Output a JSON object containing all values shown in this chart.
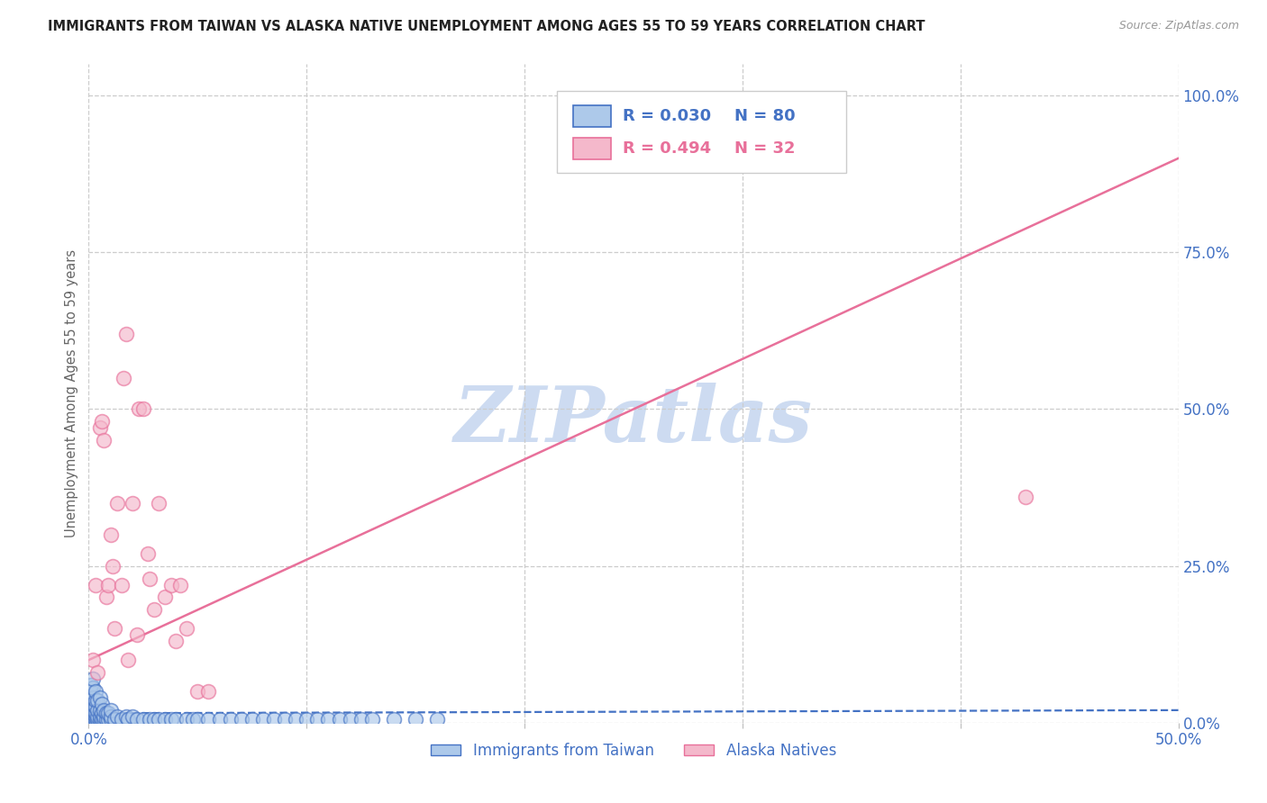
{
  "title": "IMMIGRANTS FROM TAIWAN VS ALASKA NATIVE UNEMPLOYMENT AMONG AGES 55 TO 59 YEARS CORRELATION CHART",
  "source": "Source: ZipAtlas.com",
  "ylabel": "Unemployment Among Ages 55 to 59 years",
  "xlim": [
    0.0,
    0.5
  ],
  "ylim": [
    0.0,
    1.05
  ],
  "series1_label": "Immigrants from Taiwan",
  "series1_facecolor": "#adc9ea",
  "series1_edgecolor": "#4472c4",
  "series1_R": 0.03,
  "series1_N": 80,
  "series2_label": "Alaska Natives",
  "series2_facecolor": "#f4b8cb",
  "series2_edgecolor": "#e8709a",
  "series2_R": 0.494,
  "series2_N": 32,
  "watermark": "ZIPatlas",
  "watermark_color": "#c8d8f0",
  "background_color": "#ffffff",
  "grid_color": "#cccccc",
  "title_color": "#222222",
  "axis_color": "#4472c4",
  "taiwan_x": [
    0.001,
    0.001,
    0.001,
    0.001,
    0.001,
    0.001,
    0.001,
    0.001,
    0.001,
    0.002,
    0.002,
    0.002,
    0.002,
    0.002,
    0.002,
    0.002,
    0.002,
    0.003,
    0.003,
    0.003,
    0.003,
    0.003,
    0.003,
    0.004,
    0.004,
    0.004,
    0.004,
    0.005,
    0.005,
    0.005,
    0.005,
    0.006,
    0.006,
    0.006,
    0.007,
    0.007,
    0.007,
    0.008,
    0.008,
    0.009,
    0.009,
    0.01,
    0.01,
    0.01,
    0.012,
    0.013,
    0.015,
    0.017,
    0.018,
    0.02,
    0.022,
    0.025,
    0.028,
    0.03,
    0.032,
    0.035,
    0.038,
    0.04,
    0.045,
    0.048,
    0.05,
    0.055,
    0.06,
    0.065,
    0.07,
    0.075,
    0.08,
    0.085,
    0.09,
    0.095,
    0.1,
    0.105,
    0.11,
    0.115,
    0.12,
    0.125,
    0.13,
    0.14,
    0.15,
    0.16
  ],
  "taiwan_y": [
    0.005,
    0.01,
    0.015,
    0.02,
    0.025,
    0.03,
    0.04,
    0.05,
    0.06,
    0.005,
    0.01,
    0.015,
    0.02,
    0.03,
    0.04,
    0.055,
    0.07,
    0.005,
    0.01,
    0.015,
    0.025,
    0.035,
    0.05,
    0.005,
    0.01,
    0.02,
    0.035,
    0.005,
    0.01,
    0.02,
    0.04,
    0.005,
    0.015,
    0.03,
    0.005,
    0.01,
    0.02,
    0.005,
    0.015,
    0.005,
    0.015,
    0.005,
    0.01,
    0.02,
    0.005,
    0.01,
    0.005,
    0.01,
    0.005,
    0.01,
    0.005,
    0.005,
    0.005,
    0.005,
    0.005,
    0.005,
    0.005,
    0.005,
    0.005,
    0.005,
    0.005,
    0.005,
    0.005,
    0.005,
    0.005,
    0.005,
    0.005,
    0.005,
    0.005,
    0.005,
    0.005,
    0.005,
    0.005,
    0.005,
    0.005,
    0.005,
    0.005,
    0.005,
    0.005,
    0.005
  ],
  "alaska_x": [
    0.002,
    0.003,
    0.004,
    0.005,
    0.006,
    0.007,
    0.008,
    0.009,
    0.01,
    0.011,
    0.012,
    0.013,
    0.015,
    0.016,
    0.017,
    0.018,
    0.02,
    0.022,
    0.023,
    0.025,
    0.027,
    0.028,
    0.03,
    0.032,
    0.035,
    0.038,
    0.04,
    0.042,
    0.045,
    0.05,
    0.055,
    0.43
  ],
  "alaska_y": [
    0.1,
    0.22,
    0.08,
    0.47,
    0.48,
    0.45,
    0.2,
    0.22,
    0.3,
    0.25,
    0.15,
    0.35,
    0.22,
    0.55,
    0.62,
    0.1,
    0.35,
    0.14,
    0.5,
    0.5,
    0.27,
    0.23,
    0.18,
    0.35,
    0.2,
    0.22,
    0.13,
    0.22,
    0.15,
    0.05,
    0.05,
    0.36
  ],
  "alaska_trend_x0": 0.0,
  "alaska_trend_y0": 0.1,
  "alaska_trend_x1": 0.5,
  "alaska_trend_y1": 0.9,
  "taiwan_trend_x0": 0.0,
  "taiwan_trend_y0": 0.015,
  "taiwan_trend_x1": 0.5,
  "taiwan_trend_y1": 0.02
}
